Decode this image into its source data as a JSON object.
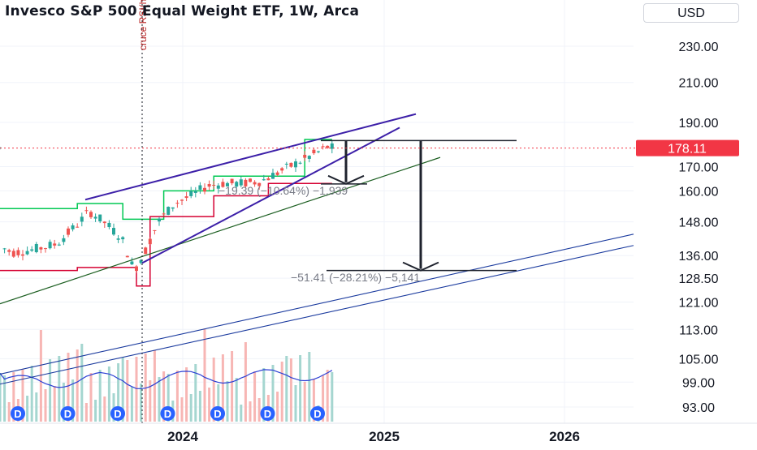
{
  "title": "Invesco S&P 500 Equal Weight ETF, 1W, Arca",
  "currency": "USD",
  "colors": {
    "up": "#26a69a",
    "down": "#ef5350",
    "supertrend_up": "#00c853",
    "supertrend_down": "#d50032",
    "channel": "#3c1fa8",
    "support_line": "#1b5e20",
    "long_channel": "#1a3a9e",
    "rsi_line": "#2b3fd4",
    "price_tag": "#f23645",
    "arrow": "#1e222d"
  },
  "chart_data": {
    "type": "candlestick",
    "title": "Invesco S&P 500 Equal Weight ETF, 1W, Arca",
    "price_axis": {
      "scale": "log",
      "ticks": [
        "230.00",
        "210.00",
        "190.00",
        "170.00",
        "160.00",
        "148.00",
        "136.00",
        "128.50",
        "121.00",
        "113.00",
        "105.00",
        "99.00",
        "93.00"
      ],
      "current_price": "178.11"
    },
    "time_axis": {
      "ticks": [
        "2024",
        "2025",
        "2026"
      ]
    },
    "dividend_marker": "D",
    "dividend_count": 7,
    "annotations": {
      "vertical_label": "cruce RSI(h)",
      "measure_small": "−19.39 (−10.64%) −1,939",
      "measure_large": "−51.41 (−28.21%) −5,141"
    }
  }
}
